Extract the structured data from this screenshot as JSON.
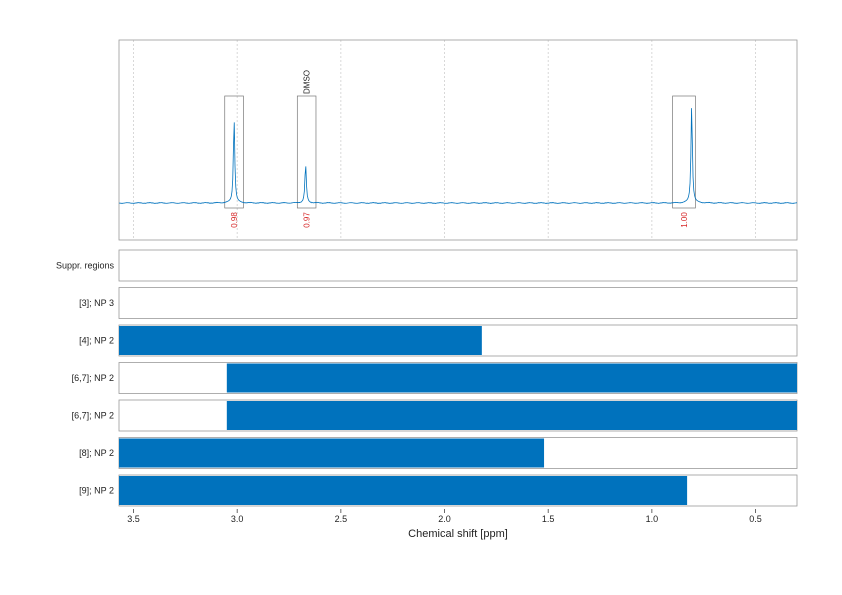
{
  "chart_data": {
    "type": "nmr-spectrum-with-coverage-bars",
    "xlabel": "Chemical shift [ppm]",
    "xlim": [
      3.57,
      0.3
    ],
    "xticks": [
      3.5,
      3.0,
      2.5,
      2.0,
      1.5,
      1.0,
      0.5
    ],
    "xtick_labels": [
      "3.5",
      "3.0",
      "2.5",
      "2.0",
      "1.5",
      "1.0",
      "0.5"
    ],
    "grid": "vertical dotted",
    "colors": {
      "spectrum": "#0072bd",
      "bar": "#0072bd",
      "integral": "#d62728",
      "box": "#666666"
    },
    "spectrum": {
      "baseline": 0.0,
      "peaks": [
        {
          "ppm": 3.015,
          "height": 1.0
        },
        {
          "ppm": 2.67,
          "height": 0.46
        },
        {
          "ppm": 0.808,
          "height": 1.15
        }
      ]
    },
    "integral_regions": [
      {
        "from": 3.06,
        "to": 2.97,
        "value": "0.98",
        "annotation": ""
      },
      {
        "from": 2.71,
        "to": 2.62,
        "value": "0.97",
        "annotation": "DMSO"
      },
      {
        "from": 0.9,
        "to": 0.79,
        "value": "1.00",
        "annotation": ""
      }
    ],
    "rows": [
      {
        "label": "Suppr. regions",
        "range": null
      },
      {
        "label": "[3]; NP 3",
        "range": null
      },
      {
        "label": "[4]; NP 2",
        "range": [
          3.57,
          1.82
        ]
      },
      {
        "label": "[6,7]; NP 2",
        "range": [
          3.05,
          0.3
        ]
      },
      {
        "label": "[6,7]; NP 2",
        "range": [
          3.05,
          0.3
        ]
      },
      {
        "label": "[8]; NP 2",
        "range": [
          3.57,
          1.52
        ]
      },
      {
        "label": "[9]; NP 2",
        "range": [
          3.57,
          0.83
        ]
      }
    ]
  }
}
